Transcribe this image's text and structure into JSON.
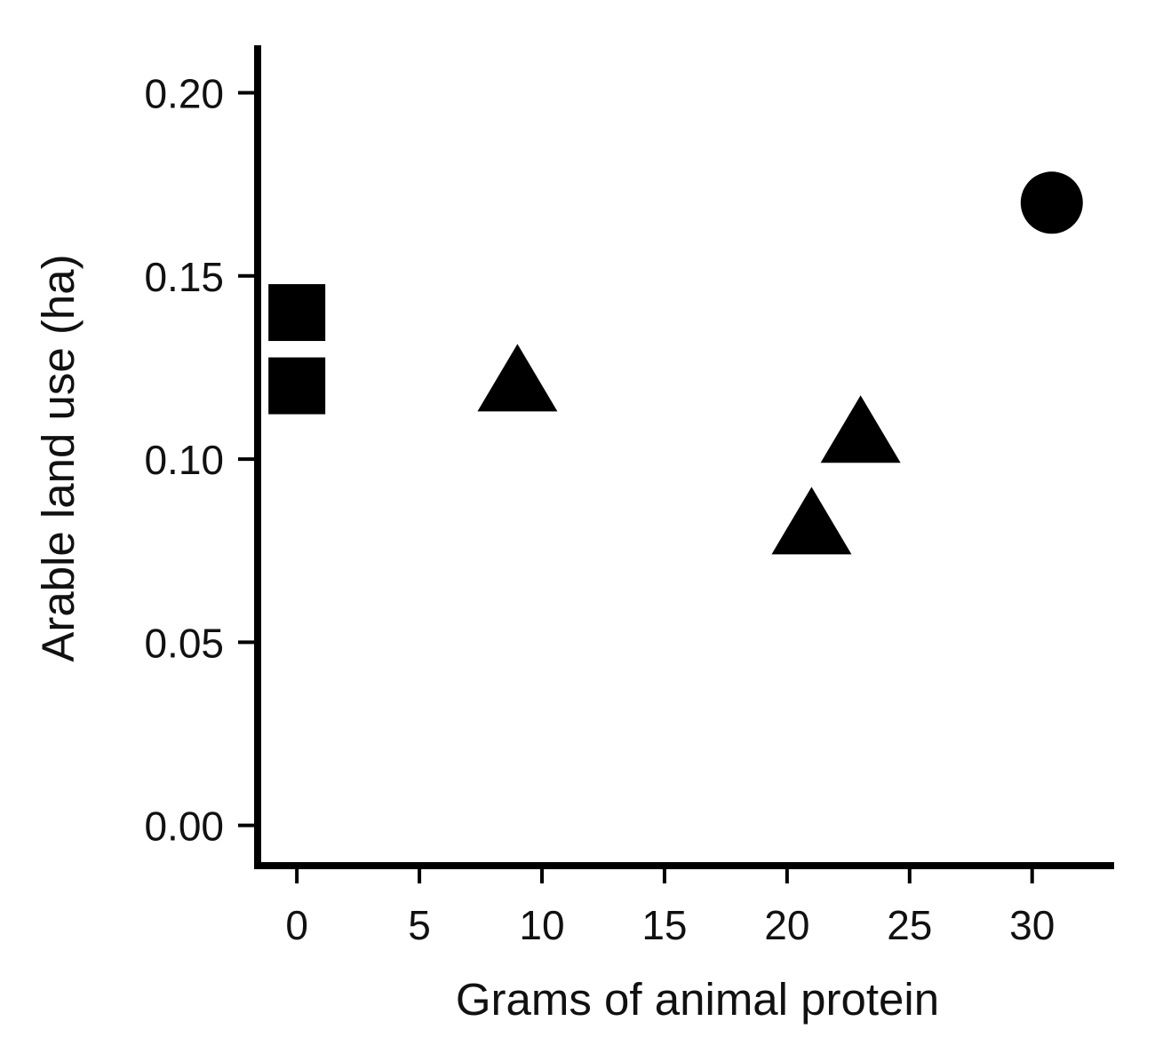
{
  "chart_data": {
    "type": "scatter",
    "title": "",
    "xlabel": "Grams of animal protein",
    "ylabel": "Arable land use (ha)",
    "xlim": [
      -1.6,
      33.2
    ],
    "ylim": [
      -0.011,
      0.212
    ],
    "x_ticks": [
      0,
      5,
      10,
      15,
      20,
      25,
      30
    ],
    "x_tick_labels": [
      "0",
      "5",
      "10",
      "15",
      "20",
      "25",
      "30"
    ],
    "y_ticks": [
      0.0,
      0.05,
      0.1,
      0.15,
      0.2
    ],
    "y_tick_labels": [
      "0.00",
      "0.05",
      "0.10",
      "0.15",
      "0.20"
    ],
    "grid": false,
    "legend": "none",
    "marker_color": "#000000",
    "points": [
      {
        "x": 0,
        "y": 0.14,
        "marker": "square"
      },
      {
        "x": 0,
        "y": 0.12,
        "marker": "square"
      },
      {
        "x": 9,
        "y": 0.12,
        "marker": "triangle"
      },
      {
        "x": 21,
        "y": 0.081,
        "marker": "triangle"
      },
      {
        "x": 23,
        "y": 0.106,
        "marker": "triangle"
      },
      {
        "x": 30.8,
        "y": 0.17,
        "marker": "circle"
      }
    ]
  }
}
